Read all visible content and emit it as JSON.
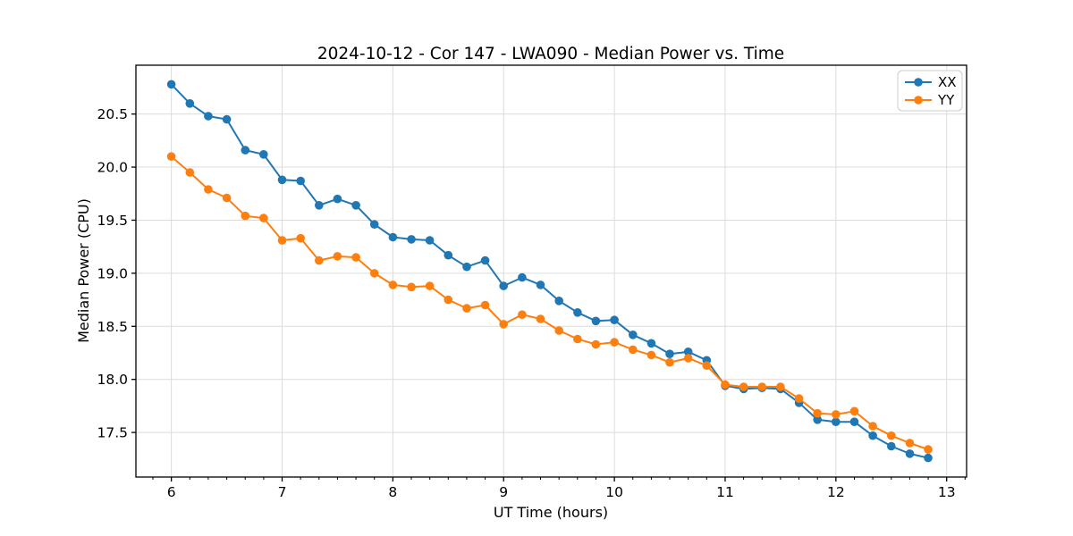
{
  "chart_data": {
    "type": "line",
    "title": "2024-10-12 - Cor 147 - LWA090 - Median Power vs. Time",
    "xlabel": "UT Time (hours)",
    "ylabel": "Median Power (CPU)",
    "xlim": [
      5.68,
      13.18
    ],
    "ylim": [
      17.08,
      20.96
    ],
    "grid": true,
    "legend_position": "upper right",
    "xticks": [
      6,
      7,
      8,
      9,
      10,
      11,
      12,
      13
    ],
    "xtick_labels": [
      "6",
      "7",
      "8",
      "9",
      "10",
      "11",
      "12",
      "13"
    ],
    "x_minor_step": 0.1666667,
    "yticks": [
      17.5,
      18.0,
      18.5,
      19.0,
      19.5,
      20.0,
      20.5
    ],
    "ytick_labels": [
      "17.5",
      "18.0",
      "18.5",
      "19.0",
      "19.5",
      "20.0",
      "20.5"
    ],
    "x": [
      6.0,
      6.167,
      6.333,
      6.5,
      6.667,
      6.833,
      7.0,
      7.167,
      7.333,
      7.5,
      7.667,
      7.833,
      8.0,
      8.167,
      8.333,
      8.5,
      8.667,
      8.833,
      9.0,
      9.167,
      9.333,
      9.5,
      9.667,
      9.833,
      10.0,
      10.167,
      10.333,
      10.5,
      10.667,
      10.833,
      11.0,
      11.167,
      11.333,
      11.5,
      11.667,
      11.833,
      12.0,
      12.167,
      12.333,
      12.5,
      12.667,
      12.833
    ],
    "series": [
      {
        "name": "XX",
        "color": "#1f77b4",
        "values": [
          20.78,
          20.6,
          20.48,
          20.45,
          20.16,
          20.12,
          19.88,
          19.87,
          19.64,
          19.7,
          19.64,
          19.46,
          19.34,
          19.32,
          19.31,
          19.17,
          19.06,
          19.12,
          18.88,
          18.96,
          18.89,
          18.74,
          18.63,
          18.55,
          18.56,
          18.42,
          18.34,
          18.24,
          18.26,
          18.18,
          17.94,
          17.91,
          17.92,
          17.91,
          17.78,
          17.62,
          17.6,
          17.6,
          17.47,
          17.37,
          17.3,
          17.26
        ]
      },
      {
        "name": "YY",
        "color": "#ff7f0e",
        "values": [
          20.1,
          19.95,
          19.79,
          19.71,
          19.54,
          19.52,
          19.31,
          19.33,
          19.12,
          19.16,
          19.15,
          19.0,
          18.89,
          18.87,
          18.88,
          18.75,
          18.67,
          18.7,
          18.52,
          18.61,
          18.57,
          18.46,
          18.38,
          18.33,
          18.35,
          18.28,
          18.23,
          18.16,
          18.2,
          18.13,
          17.95,
          17.93,
          17.93,
          17.93,
          17.82,
          17.68,
          17.67,
          17.7,
          17.56,
          17.47,
          17.4,
          17.34
        ]
      }
    ],
    "colors": {
      "grid": "#dcdcdc",
      "spine": "#000000",
      "legend_border": "#cccccc",
      "background": "#ffffff"
    }
  }
}
